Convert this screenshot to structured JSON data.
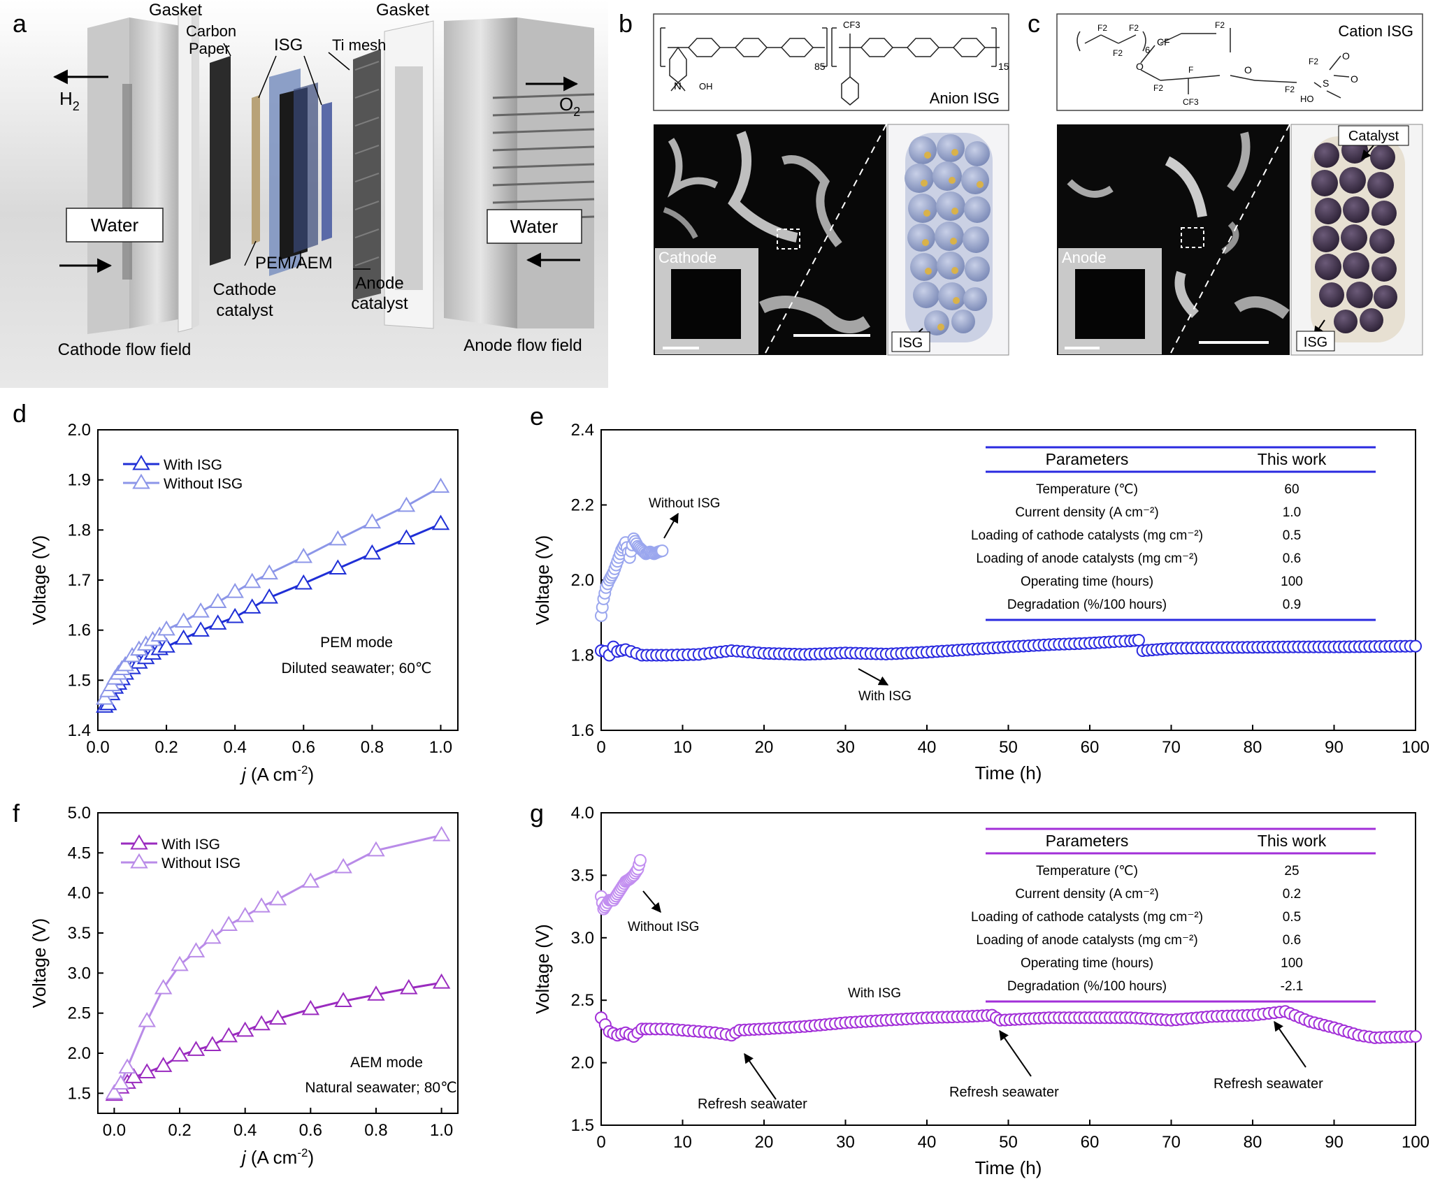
{
  "panels": {
    "a": {
      "letter": "a",
      "labels": {
        "gasket_left": "Gasket",
        "gasket_right": "Gasket",
        "carbon_paper_1": "Carbon",
        "carbon_paper_2": "Paper",
        "isg": "ISG",
        "ti_mesh": "Ti mesh",
        "h2": "H",
        "h2_sub": "2",
        "o2": "O",
        "o2_sub": "2",
        "water_left": "Water",
        "water_right": "Water",
        "membrane": "PEM/AEM",
        "cathode_catalyst_1": "Cathode",
        "cathode_catalyst_2": "catalyst",
        "anode_catalyst_1": "Anode",
        "anode_catalyst_2": "catalyst",
        "cathode_flow_field": "Cathode flow field",
        "anode_flow_field": "Anode flow field"
      }
    },
    "b": {
      "letter": "b",
      "structure_label": "Anion ISG",
      "subscript_1": "85",
      "subscript_2": "15",
      "cf3": "CF3",
      "oh": "OH",
      "n": "N",
      "inset_label": "Cathode",
      "model_label": "ISG"
    },
    "c": {
      "letter": "c",
      "structure_label": "Cation ISG",
      "subscript_6": "6",
      "f2": "F2",
      "f": "F",
      "cf": "CF",
      "cf3": "CF3",
      "o": "O",
      "ho": "HO",
      "s": "S",
      "inset_label": "Anode",
      "model_label_top": "Catalyst",
      "model_label": "ISG"
    },
    "d": {
      "letter": "d"
    },
    "e": {
      "letter": "e"
    },
    "f": {
      "letter": "f"
    },
    "g": {
      "letter": "g"
    }
  },
  "chart_data": [
    {
      "id": "d",
      "type": "line",
      "xlabel": "j (A cm-2)",
      "ylabel": "Voltage (V)",
      "xlim": [
        0,
        1.05
      ],
      "ylim": [
        1.4,
        2.0
      ],
      "xticks": [
        "0.0",
        "0.2",
        "0.4",
        "0.6",
        "0.8",
        "1.0"
      ],
      "yticks": [
        "1.4",
        "1.5",
        "1.6",
        "1.7",
        "1.8",
        "1.9",
        "2.0"
      ],
      "legend": "top-left",
      "annotations": [
        "PEM mode",
        "Diluted seawater; 60℃"
      ],
      "series": [
        {
          "name": "With ISG",
          "color": "#1f2fd6",
          "x": [
            0.02,
            0.03,
            0.04,
            0.05,
            0.06,
            0.07,
            0.08,
            0.1,
            0.12,
            0.14,
            0.16,
            0.18,
            0.2,
            0.25,
            0.3,
            0.35,
            0.4,
            0.45,
            0.5,
            0.6,
            0.7,
            0.8,
            0.9,
            1.0
          ],
          "y": [
            1.447,
            1.452,
            1.472,
            1.485,
            1.493,
            1.502,
            1.513,
            1.524,
            1.535,
            1.544,
            1.553,
            1.562,
            1.567,
            1.583,
            1.599,
            1.613,
            1.626,
            1.645,
            1.665,
            1.693,
            1.723,
            1.753,
            1.783,
            1.812
          ]
        },
        {
          "name": "Without ISG",
          "color": "#8c96e8",
          "x": [
            0.02,
            0.03,
            0.04,
            0.05,
            0.06,
            0.07,
            0.08,
            0.1,
            0.12,
            0.14,
            0.16,
            0.18,
            0.2,
            0.25,
            0.3,
            0.35,
            0.4,
            0.45,
            0.5,
            0.6,
            0.7,
            0.8,
            0.9,
            1.0
          ],
          "y": [
            1.463,
            1.478,
            1.49,
            1.503,
            1.513,
            1.522,
            1.53,
            1.548,
            1.561,
            1.571,
            1.58,
            1.589,
            1.601,
            1.617,
            1.637,
            1.656,
            1.676,
            1.696,
            1.713,
            1.746,
            1.781,
            1.815,
            1.848,
            1.886
          ]
        }
      ]
    },
    {
      "id": "e",
      "type": "scatter",
      "xlabel": "Time (h)",
      "ylabel": "Voltage (V)",
      "xlim": [
        0,
        100
      ],
      "ylim": [
        1.6,
        2.4
      ],
      "xticks": [
        "0",
        "10",
        "20",
        "30",
        "40",
        "50",
        "60",
        "70",
        "80",
        "90",
        "100"
      ],
      "yticks": [
        "1.6",
        "1.8",
        "2.0",
        "2.2",
        "2.4"
      ],
      "annotations": [
        "Without ISG",
        "With ISG"
      ],
      "series": [
        {
          "name": "With ISG",
          "color": "#2a2ae0",
          "x": [
            0,
            0.5,
            1,
            1.5,
            2,
            3,
            5,
            8,
            12,
            16,
            20,
            25,
            30,
            35,
            40,
            45,
            50,
            55,
            60,
            63,
            65,
            66,
            66.5,
            70,
            75,
            80,
            85,
            90,
            95,
            100
          ],
          "y": [
            1.812,
            1.81,
            1.8,
            1.822,
            1.81,
            1.815,
            1.8,
            1.8,
            1.802,
            1.812,
            1.805,
            1.802,
            1.806,
            1.803,
            1.808,
            1.815,
            1.822,
            1.828,
            1.832,
            1.836,
            1.838,
            1.84,
            1.812,
            1.818,
            1.82,
            1.821,
            1.822,
            1.822,
            1.823,
            1.824
          ]
        },
        {
          "name": "Without ISG",
          "color": "#9aa6ee",
          "x": [
            0,
            0.3,
            0.6,
            1,
            1.5,
            2,
            2.5,
            3,
            3.5,
            4,
            4.5,
            5,
            5.5,
            6,
            6.5,
            7,
            7.5
          ],
          "y": [
            1.905,
            1.95,
            1.98,
            2.0,
            2.02,
            2.05,
            2.08,
            2.1,
            2.06,
            2.11,
            2.09,
            2.08,
            2.07,
            2.075,
            2.07,
            2.075,
            2.078
          ]
        }
      ],
      "table": {
        "headers": [
          "Parameters",
          "This work"
        ],
        "rows": [
          [
            "Temperature (℃)",
            "60"
          ],
          [
            "Current density (A cm⁻²)",
            "1.0"
          ],
          [
            "Loading of cathode catalysts (mg cm⁻²)",
            "0.5"
          ],
          [
            "Loading of anode catalysts (mg cm⁻²)",
            "0.6"
          ],
          [
            "Operating time (hours)",
            "100"
          ],
          [
            "Degradation (%/100 hours)",
            "0.9"
          ]
        ]
      }
    },
    {
      "id": "f",
      "type": "line",
      "xlabel": "j (A cm-2)",
      "ylabel": "Voltage (V)",
      "xlim": [
        -0.05,
        1.05
      ],
      "ylim": [
        1.25,
        5.0
      ],
      "xticks": [
        "0.0",
        "0.2",
        "0.4",
        "0.6",
        "0.8",
        "1.0"
      ],
      "yticks": [
        "1.5",
        "2.0",
        "2.5",
        "3.0",
        "3.5",
        "4.0",
        "4.5",
        "5.0"
      ],
      "legend": "top-left",
      "annotations": [
        "AEM mode",
        "Natural seawater; 80℃"
      ],
      "series": [
        {
          "name": "With ISG",
          "color": "#9a2bbf",
          "x": [
            0,
            0.02,
            0.04,
            0.06,
            0.1,
            0.15,
            0.2,
            0.25,
            0.3,
            0.35,
            0.4,
            0.45,
            0.5,
            0.6,
            0.7,
            0.8,
            0.9,
            1.0
          ],
          "y": [
            1.48,
            1.57,
            1.63,
            1.7,
            1.76,
            1.84,
            1.97,
            2.04,
            2.1,
            2.21,
            2.28,
            2.36,
            2.43,
            2.55,
            2.65,
            2.73,
            2.81,
            2.88
          ]
        },
        {
          "name": "Without ISG",
          "color": "#b98be8",
          "x": [
            0,
            0.02,
            0.04,
            0.1,
            0.15,
            0.2,
            0.25,
            0.3,
            0.35,
            0.4,
            0.45,
            0.5,
            0.6,
            0.7,
            0.8,
            1.0
          ],
          "y": [
            1.5,
            1.62,
            1.82,
            2.4,
            2.81,
            3.1,
            3.27,
            3.44,
            3.6,
            3.71,
            3.83,
            3.92,
            4.14,
            4.32,
            4.53,
            4.72
          ]
        }
      ]
    },
    {
      "id": "g",
      "type": "scatter",
      "xlabel": "Time (h)",
      "ylabel": "Voltage (V)",
      "xlim": [
        0,
        100
      ],
      "ylim": [
        1.5,
        4.0
      ],
      "xticks": [
        "0",
        "10",
        "20",
        "30",
        "40",
        "50",
        "60",
        "70",
        "80",
        "90",
        "100"
      ],
      "yticks": [
        "1.5",
        "2.0",
        "2.5",
        "3.0",
        "3.5",
        "4.0"
      ],
      "annotations": [
        "Without ISG",
        "With ISG",
        "Refresh seawater",
        "Refresh seawater",
        "Refresh seawater"
      ],
      "series": [
        {
          "name": "With ISG",
          "color": "#a22fd8",
          "x": [
            0,
            1,
            2,
            3,
            4,
            5,
            6,
            8,
            10,
            12,
            14,
            16,
            17,
            20,
            25,
            30,
            35,
            40,
            45,
            48,
            49,
            52,
            55,
            60,
            65,
            70,
            75,
            80,
            84,
            87,
            90,
            93,
            95,
            100
          ],
          "y": [
            2.36,
            2.25,
            2.22,
            2.24,
            2.21,
            2.27,
            2.27,
            2.27,
            2.26,
            2.25,
            2.24,
            2.22,
            2.26,
            2.27,
            2.29,
            2.32,
            2.34,
            2.36,
            2.37,
            2.38,
            2.34,
            2.35,
            2.36,
            2.36,
            2.36,
            2.34,
            2.37,
            2.38,
            2.41,
            2.33,
            2.28,
            2.22,
            2.2,
            2.21
          ]
        },
        {
          "name": "Without ISG",
          "color": "#c28ef0",
          "x": [
            0,
            0.3,
            0.6,
            1,
            1.5,
            2,
            2.5,
            3,
            3.5,
            4,
            4.5,
            4.8
          ],
          "y": [
            3.33,
            3.23,
            3.26,
            3.3,
            3.3,
            3.35,
            3.4,
            3.45,
            3.47,
            3.5,
            3.55,
            3.62
          ]
        }
      ],
      "table": {
        "headers": [
          "Parameters",
          "This work"
        ],
        "rows": [
          [
            "Temperature (℃)",
            "25"
          ],
          [
            "Current density (A cm⁻²)",
            "0.2"
          ],
          [
            "Loading of cathode catalysts (mg cm⁻²)",
            "0.5"
          ],
          [
            "Loading of anode catalysts (mg cm⁻²)",
            "0.6"
          ],
          [
            "Operating time (hours)",
            "100"
          ],
          [
            "Degradation (%/100 hours)",
            "-2.1"
          ]
        ]
      }
    }
  ]
}
